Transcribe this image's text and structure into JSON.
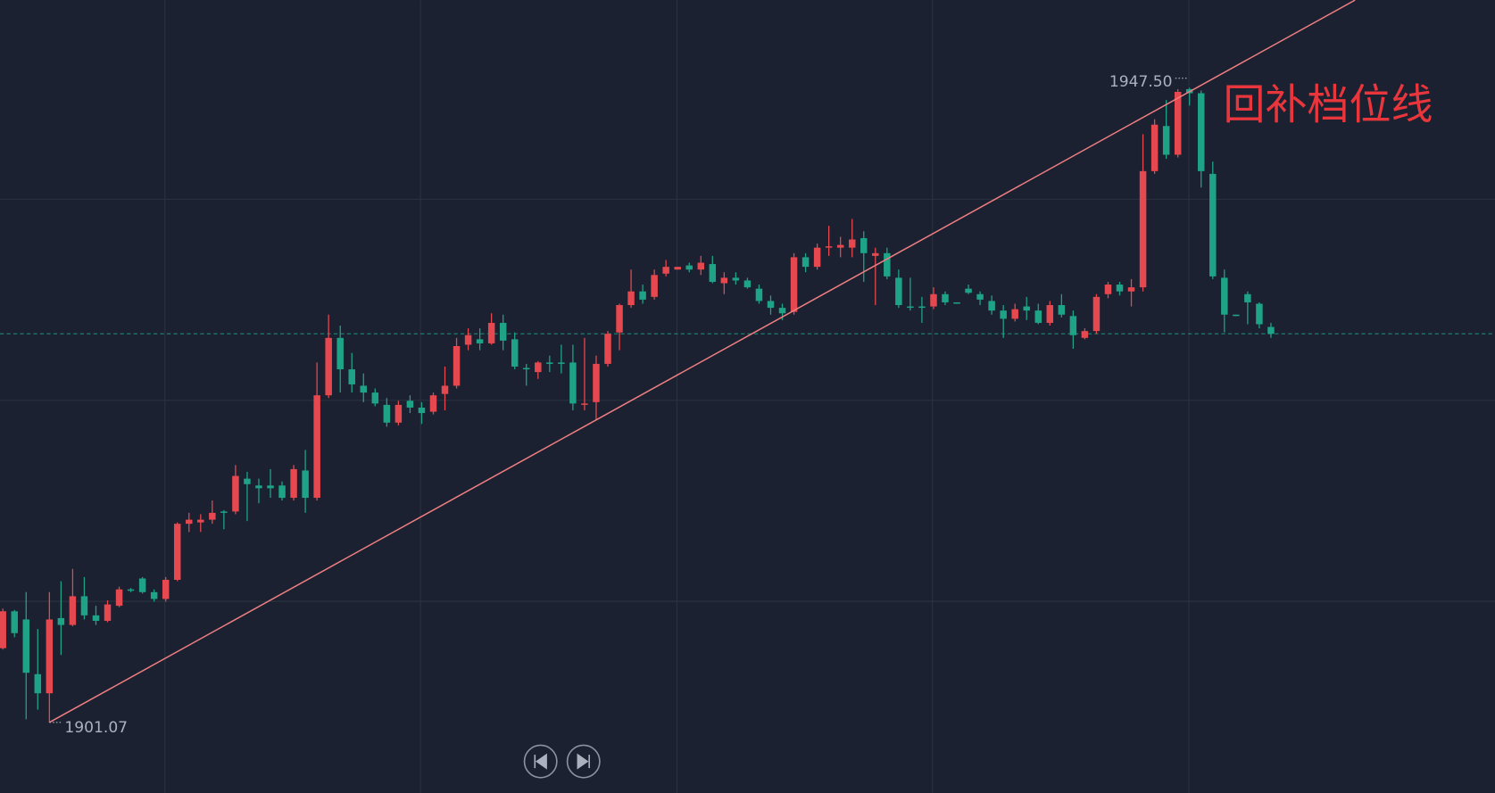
{
  "chart_data": {
    "type": "candlestick",
    "annotation": "回补档位线",
    "high_label": "1947.50",
    "low_label": "1901.07",
    "up_color": "#e5484f",
    "down_color": "#1fa386",
    "grid": true,
    "open": [
      1906.5,
      1909.2,
      1908.6,
      1904.6,
      1903.2,
      1908.7,
      1908.2,
      1910.3,
      1908.9,
      1908.5,
      1909.6,
      1910.8,
      1911.6,
      1910.6,
      1910.1,
      1911.5,
      1915.6,
      1915.7,
      1915.9,
      1916.5,
      1916.5,
      1918.9,
      1918.4,
      1918.4,
      1918.4,
      1917.5,
      1919.5,
      1917.5,
      1925.0,
      1929.2,
      1926.9,
      1925.7,
      1925.2,
      1924.3,
      1923.0,
      1924.6,
      1924.1,
      1923.8,
      1925.1,
      1925.7,
      1928.7,
      1929.1,
      1928.8,
      1930.3,
      1929.1,
      1927.0,
      1926.7,
      1927.4,
      1927.4,
      1927.4,
      1924.3,
      1924.5,
      1927.3,
      1929.6,
      1931.6,
      1932.6,
      1932.2,
      1933.9,
      1934.2,
      1934.5,
      1934.2,
      1934.6,
      1933.2,
      1933.6,
      1933.4,
      1932.8,
      1931.9,
      1931.4,
      1931.1,
      1935.1,
      1934.4,
      1935.8,
      1935.8,
      1935.8,
      1936.5,
      1935.2,
      1935.4,
      1933.6,
      1931.5,
      1931.5,
      1931.5,
      1932.4,
      1931.8,
      1932.8,
      1932.4,
      1931.9,
      1931.2,
      1930.6,
      1931.5,
      1931.2,
      1930.3,
      1931.6,
      1930.8,
      1929.2,
      1929.7,
      1932.4,
      1933.1,
      1932.6,
      1932.9,
      1941.4,
      1944.7,
      1942.6,
      1947.4,
      1947.1,
      1941.2,
      1933.6,
      1930.9,
      1932.4,
      1931.7,
      1930.0
    ],
    "high": [
      1909.4,
      1909.3,
      1910.6,
      1907.9,
      1910.6,
      1911.4,
      1912.3,
      1911.7,
      1909.6,
      1910.0,
      1911.0,
      1910.9,
      1911.7,
      1910.8,
      1911.7,
      1915.7,
      1916.4,
      1916.3,
      1917.3,
      1916.6,
      1919.9,
      1919.4,
      1918.9,
      1919.6,
      1918.7,
      1919.9,
      1921.0,
      1927.4,
      1930.9,
      1930.1,
      1928.1,
      1926.6,
      1925.5,
      1924.8,
      1924.6,
      1925.0,
      1924.5,
      1925.2,
      1927.1,
      1929.2,
      1929.9,
      1929.9,
      1931.0,
      1930.9,
      1929.6,
      1927.3,
      1927.5,
      1927.9,
      1928.7,
      1928.7,
      1929.2,
      1927.9,
      1929.7,
      1931.7,
      1934.2,
      1933.1,
      1934.2,
      1934.9,
      1934.4,
      1934.7,
      1935.2,
      1935.2,
      1934.0,
      1934.0,
      1933.6,
      1933.1,
      1932.3,
      1931.7,
      1935.4,
      1935.4,
      1936.1,
      1937.4,
      1936.6,
      1937.9,
      1937.0,
      1935.8,
      1935.8,
      1934.2,
      1933.6,
      1932.2,
      1932.9,
      1932.6,
      1931.8,
      1933.1,
      1932.6,
      1932.3,
      1931.6,
      1931.7,
      1932.2,
      1931.7,
      1931.9,
      1932.4,
      1931.2,
      1929.9,
      1932.4,
      1933.3,
      1933.3,
      1933.5,
      1944.1,
      1945.2,
      1946.6,
      1947.4,
      1947.5,
      1947.3,
      1942.1,
      1934.2,
      1930.9,
      1932.6,
      1931.8,
      1930.3
    ],
    "low": [
      1906.4,
      1907.3,
      1901.3,
      1902.0,
      1901.07,
      1906.0,
      1908.1,
      1908.6,
      1908.2,
      1908.4,
      1909.5,
      1910.6,
      1910.5,
      1909.9,
      1909.9,
      1911.4,
      1915.0,
      1915.0,
      1915.6,
      1915.2,
      1916.3,
      1915.8,
      1917.1,
      1917.5,
      1917.3,
      1917.3,
      1916.4,
      1917.3,
      1924.8,
      1925.2,
      1925.2,
      1924.5,
      1924.2,
      1922.7,
      1922.8,
      1923.7,
      1922.9,
      1923.6,
      1923.9,
      1925.5,
      1928.3,
      1928.3,
      1928.7,
      1928.3,
      1926.9,
      1925.7,
      1926.2,
      1926.7,
      1926.6,
      1923.9,
      1923.9,
      1923.2,
      1927.1,
      1928.3,
      1931.4,
      1931.7,
      1932.0,
      1933.7,
      1934.2,
      1934.0,
      1933.8,
      1933.2,
      1932.4,
      1933.1,
      1932.8,
      1931.7,
      1930.9,
      1930.5,
      1930.9,
      1934.0,
      1934.2,
      1935.2,
      1935.1,
      1935.1,
      1933.3,
      1931.6,
      1933.5,
      1931.4,
      1931.2,
      1930.3,
      1931.3,
      1931.6,
      1931.7,
      1932.4,
      1931.6,
      1930.9,
      1929.2,
      1930.4,
      1930.5,
      1930.2,
      1930.1,
      1930.7,
      1928.4,
      1929.1,
      1929.5,
      1932.1,
      1932.3,
      1931.5,
      1932.6,
      1941.2,
      1942.3,
      1942.4,
      1946.2,
      1940.2,
      1933.5,
      1929.6,
      1930.8,
      1930.2,
      1929.9,
      1929.2
    ],
    "close": [
      1909.2,
      1907.6,
      1904.7,
      1903.2,
      1908.6,
      1908.2,
      1910.3,
      1908.9,
      1908.5,
      1909.7,
      1910.8,
      1910.7,
      1910.6,
      1910.1,
      1911.5,
      1915.6,
      1915.9,
      1915.9,
      1916.4,
      1916.4,
      1919.1,
      1918.5,
      1918.2,
      1918.2,
      1917.5,
      1919.6,
      1917.5,
      1925.0,
      1929.2,
      1926.9,
      1925.8,
      1925.2,
      1924.4,
      1923.0,
      1924.3,
      1924.1,
      1923.7,
      1925.0,
      1925.7,
      1928.6,
      1929.4,
      1928.8,
      1930.3,
      1929.0,
      1927.1,
      1926.9,
      1927.4,
      1927.3,
      1927.3,
      1924.4,
      1924.4,
      1927.3,
      1929.5,
      1931.6,
      1932.6,
      1932.0,
      1933.8,
      1934.4,
      1934.4,
      1934.2,
      1934.7,
      1933.3,
      1933.6,
      1933.4,
      1932.9,
      1931.9,
      1931.4,
      1931.0,
      1935.1,
      1934.4,
      1935.8,
      1935.9,
      1936.0,
      1936.4,
      1935.4,
      1935.4,
      1933.7,
      1931.6,
      1931.4,
      1931.4,
      1932.4,
      1931.8,
      1931.7,
      1932.5,
      1932.0,
      1931.2,
      1930.6,
      1931.3,
      1931.2,
      1930.3,
      1931.6,
      1930.9,
      1929.4,
      1929.7,
      1932.2,
      1933.1,
      1932.6,
      1932.9,
      1941.4,
      1944.8,
      1942.6,
      1947.2,
      1947.1,
      1941.4,
      1933.7,
      1930.9,
      1930.8,
      1931.8,
      1930.2,
      1929.5
    ]
  }
}
